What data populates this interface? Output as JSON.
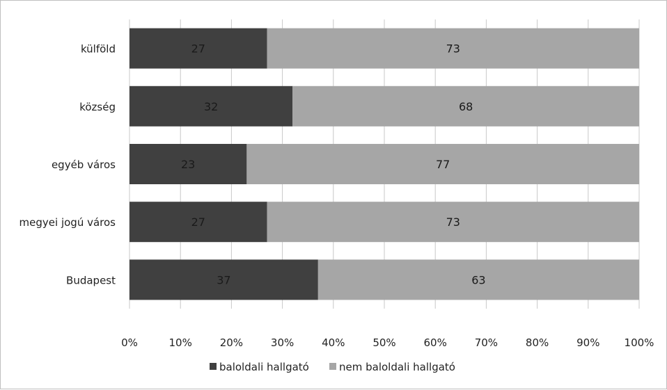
{
  "chart_data": {
    "type": "bar",
    "orientation": "horizontal",
    "stacked": true,
    "title": "",
    "categories": [
      "külföld",
      "község",
      "egyéb város",
      "megyei jogú város",
      "Budapest"
    ],
    "series": [
      {
        "name": "baloldali hallgató",
        "color": "#404040",
        "values": [
          27,
          32,
          23,
          27,
          37
        ]
      },
      {
        "name": "nem baloldali hallgató",
        "color": "#a6a6a6",
        "values": [
          73,
          68,
          77,
          73,
          63
        ]
      }
    ],
    "x_ticks": [
      "0%",
      "10%",
      "20%",
      "30%",
      "40%",
      "50%",
      "60%",
      "70%",
      "80%",
      "90%",
      "100%"
    ],
    "xlim": [
      0,
      100
    ],
    "grid": true,
    "legend_position": "bottom"
  }
}
